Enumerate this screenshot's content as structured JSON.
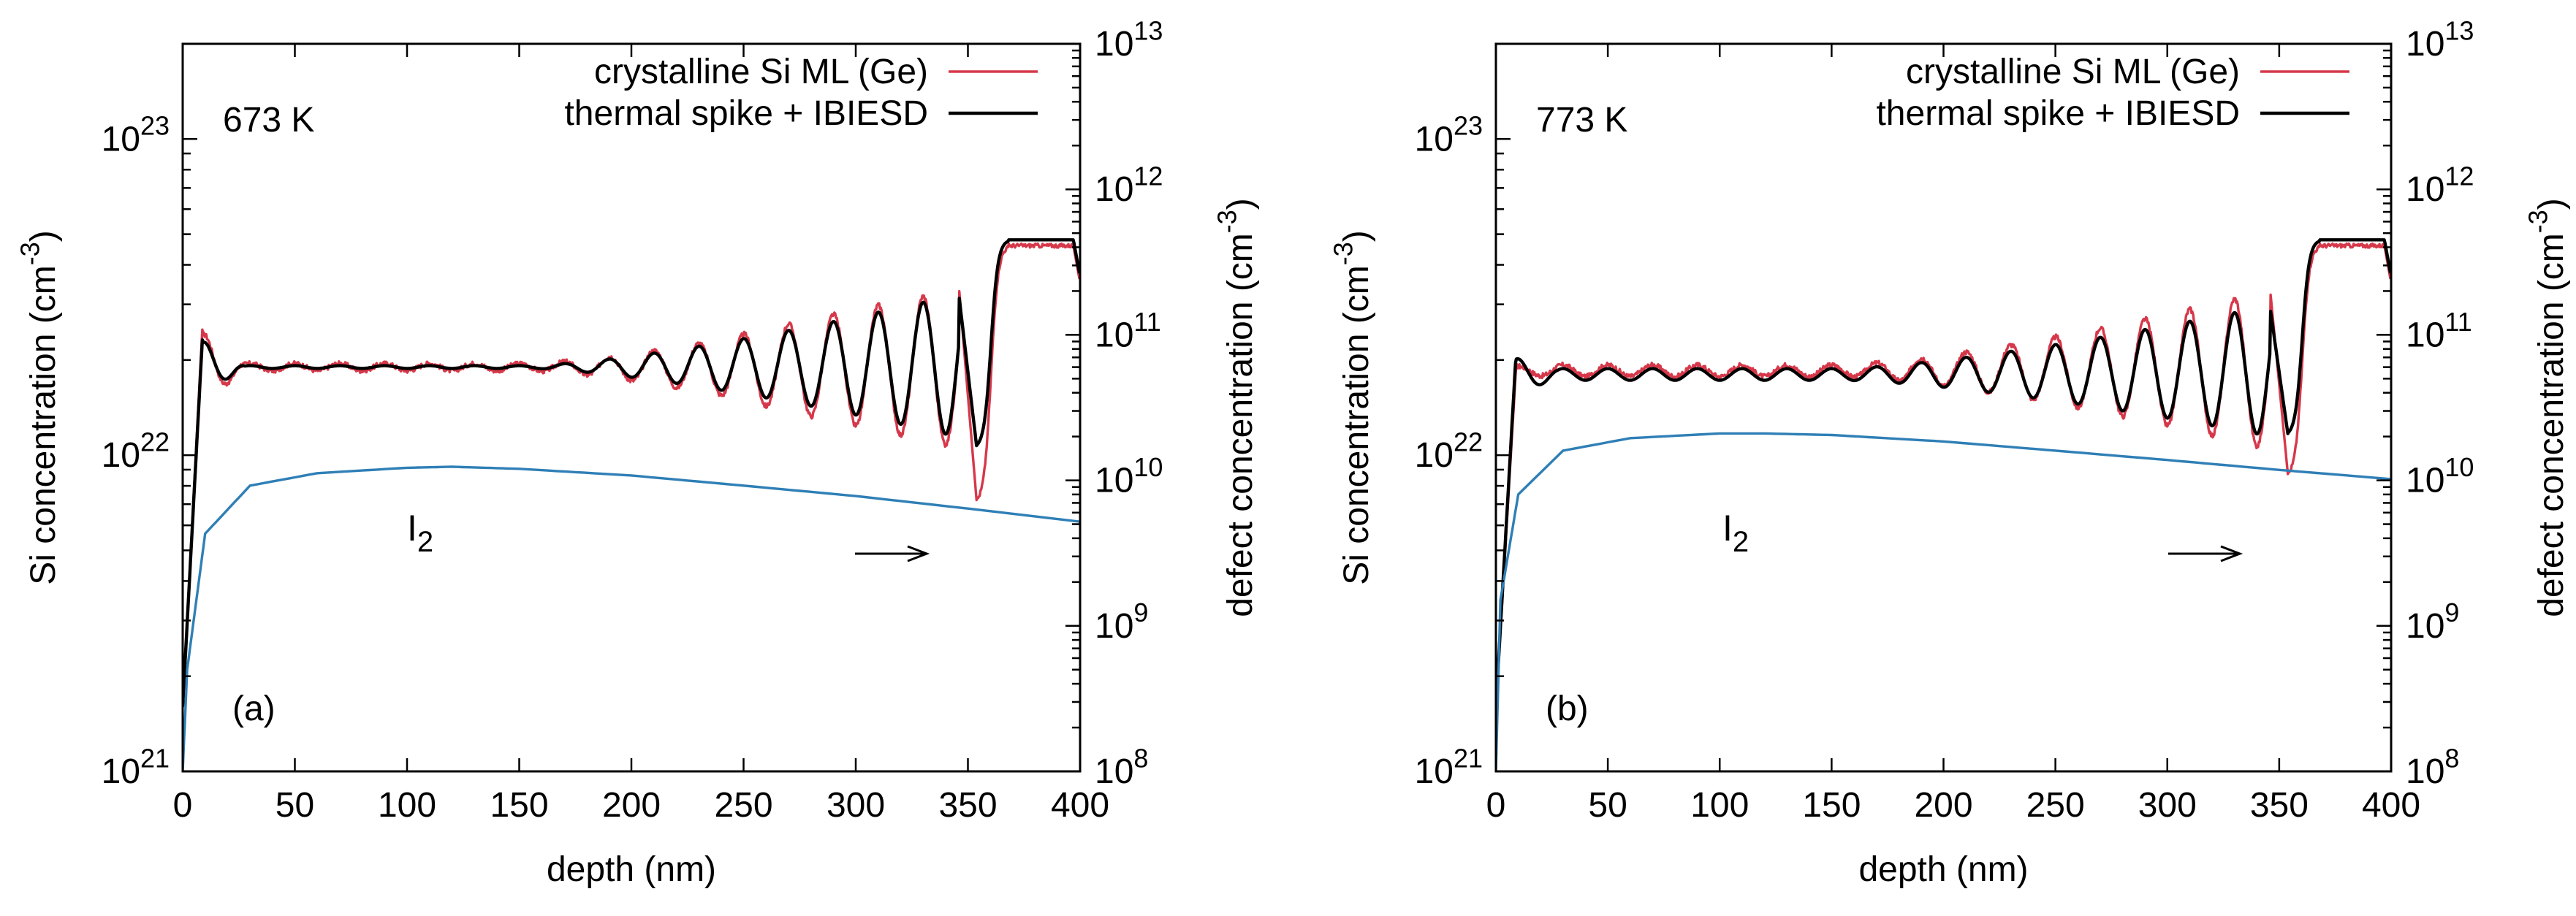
{
  "chart_data": [
    {
      "type": "line",
      "panel_label": "(a)",
      "temperature_label": "673 K",
      "xlabel": "depth (nm)",
      "ylabel_left": "Si concentration (cm-3)",
      "ylabel_right": "defect concentration (cm-3)",
      "xlim": [
        0,
        400
      ],
      "ylim_left": [
        1e+21,
        2e+23
      ],
      "ylim_right": [
        100000000.0,
        10000000000000.0
      ],
      "yscale": "log",
      "x_ticks": [
        "0",
        "50",
        "100",
        "150",
        "200",
        "250",
        "300",
        "350",
        "400"
      ],
      "y_ticks_left": [
        {
          "base": "10",
          "exp": "21"
        },
        {
          "base": "10",
          "exp": "22"
        },
        {
          "base": "10",
          "exp": "23"
        }
      ],
      "y_ticks_right": [
        {
          "base": "10",
          "exp": "8"
        },
        {
          "base": "10",
          "exp": "9"
        },
        {
          "base": "10",
          "exp": "10"
        },
        {
          "base": "10",
          "exp": "11"
        },
        {
          "base": "10",
          "exp": "12"
        },
        {
          "base": "10",
          "exp": "13"
        }
      ],
      "annotation": "I2",
      "arrow_direction": "right",
      "legend_position": "top-right",
      "series": [
        {
          "name": "crystalline Si ML (Ge)",
          "color": "#d6384a",
          "axis": "left",
          "plateau_value": 1.9e+22,
          "final_value": 4.6e+22,
          "oscillations": [
            {
              "x": 10,
              "peak": 2.7e+22
            },
            {
              "x": 100,
              "peak": 1.95e+22
            },
            {
              "x": 280,
              "peak": 3.3e+22,
              "trough": 1.05e+22
            },
            {
              "x": 340,
              "peak": 3.4e+22
            },
            {
              "x": 352,
              "trough": 7e+21
            }
          ]
        },
        {
          "name": "thermal spike + IBIESD",
          "color": "#000000",
          "axis": "left",
          "plateau_value": 1.9e+22,
          "final_value": 4.8e+22,
          "oscillations": [
            {
              "x": 10,
              "peak": 2.5e+22
            },
            {
              "x": 100,
              "peak": 1.9e+22
            },
            {
              "x": 280,
              "peak": 3.1e+22,
              "trough": 1.25e+22
            },
            {
              "x": 340,
              "peak": 3.2e+22
            },
            {
              "x": 350,
              "trough": 1.05e+22
            }
          ]
        },
        {
          "name": "I2",
          "color": "#2f7fb6",
          "axis": "right",
          "points": [
            [
              0,
              100000000.0
            ],
            [
              2,
              500000000.0
            ],
            [
              10,
              4300000000.0
            ],
            [
              30,
              9200000000.0
            ],
            [
              60,
              11200000000.0
            ],
            [
              100,
              12200000000.0
            ],
            [
              120,
              12400000000.0
            ],
            [
              150,
              12000000000.0
            ],
            [
              200,
              10800000000.0
            ],
            [
              250,
              9200000000.0
            ],
            [
              300,
              7800000000.0
            ],
            [
              350,
              6400000000.0
            ],
            [
              400,
              5200000000.0
            ]
          ]
        }
      ]
    },
    {
      "type": "line",
      "panel_label": "(b)",
      "temperature_label": "773 K",
      "xlabel": "depth (nm)",
      "ylabel_left": "Si concentration (cm-3)",
      "ylabel_right": "defect concentration (cm-3)",
      "xlim": [
        0,
        400
      ],
      "ylim_left": [
        1e+21,
        2e+23
      ],
      "ylim_right": [
        100000000.0,
        10000000000000.0
      ],
      "yscale": "log",
      "x_ticks": [
        "0",
        "50",
        "100",
        "150",
        "200",
        "250",
        "300",
        "350",
        "400"
      ],
      "y_ticks_left": [
        {
          "base": "10",
          "exp": "21"
        },
        {
          "base": "10",
          "exp": "22"
        },
        {
          "base": "10",
          "exp": "23"
        }
      ],
      "y_ticks_right": [
        {
          "base": "10",
          "exp": "8"
        },
        {
          "base": "10",
          "exp": "9"
        },
        {
          "base": "10",
          "exp": "10"
        },
        {
          "base": "10",
          "exp": "11"
        },
        {
          "base": "10",
          "exp": "12"
        },
        {
          "base": "10",
          "exp": "13"
        }
      ],
      "annotation": "I2",
      "arrow_direction": "right",
      "legend_position": "top-right",
      "series": [
        {
          "name": "crystalline Si ML (Ge)",
          "color": "#d6384a",
          "axis": "left",
          "plateau_value": 1.85e+22,
          "final_value": 4.6e+22,
          "oscillations": [
            {
              "x": 12,
              "peak": 1.9e+22
            },
            {
              "x": 200,
              "peak": 1.95e+22
            },
            {
              "x": 280,
              "peak": 3e+22,
              "trough": 1.2e+22
            },
            {
              "x": 340,
              "peak": 3.3e+22
            },
            {
              "x": 350,
              "trough": 8.5e+21
            }
          ]
        },
        {
          "name": "thermal spike + IBIESD",
          "color": "#000000",
          "axis": "left",
          "plateau_value": 1.8e+22,
          "final_value": 4.8e+22,
          "oscillations": [
            {
              "x": 12,
              "peak": 2.1e+22
            },
            {
              "x": 200,
              "peak": 1.9e+22
            },
            {
              "x": 280,
              "peak": 2.85e+22,
              "trough": 1.35e+22
            },
            {
              "x": 340,
              "peak": 2.9e+22
            },
            {
              "x": 350,
              "trough": 1.15e+22
            }
          ]
        },
        {
          "name": "I2",
          "color": "#2f7fb6",
          "axis": "right",
          "points": [
            [
              0,
              100000000.0
            ],
            [
              2,
              1500000000.0
            ],
            [
              10,
              8000000000.0
            ],
            [
              30,
              16000000000.0
            ],
            [
              60,
              19500000000.0
            ],
            [
              100,
              21000000000.0
            ],
            [
              120,
              21000000000.0
            ],
            [
              150,
              20500000000.0
            ],
            [
              200,
              18500000000.0
            ],
            [
              250,
              16000000000.0
            ],
            [
              300,
              13800000000.0
            ],
            [
              350,
              11800000000.0
            ],
            [
              400,
              10200000000.0
            ]
          ]
        }
      ]
    }
  ]
}
